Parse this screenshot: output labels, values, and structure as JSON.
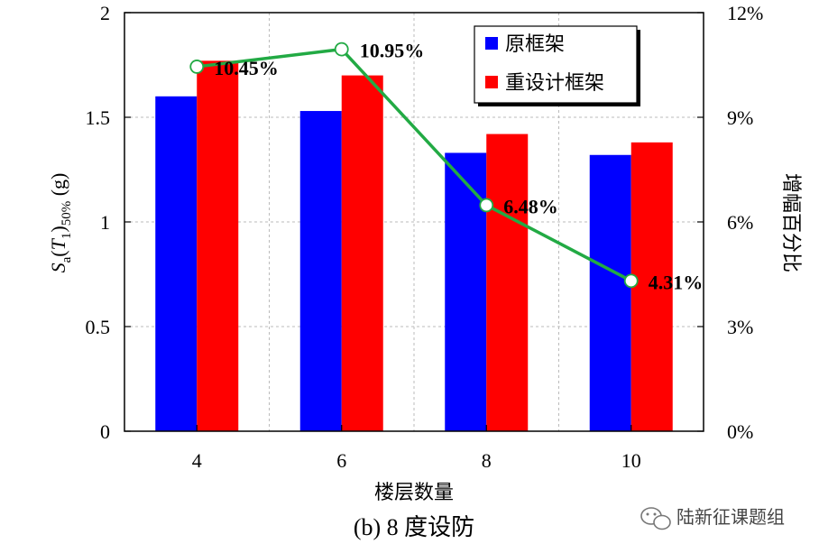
{
  "chart_data": {
    "type": "bar",
    "categories": [
      "4",
      "6",
      "8",
      "10"
    ],
    "series": [
      {
        "name": "原框架",
        "color": "#0000ff",
        "values": [
          1.6,
          1.53,
          1.33,
          1.32
        ],
        "axis": "left"
      },
      {
        "name": "重设计框架",
        "color": "#ff0000",
        "values": [
          1.77,
          1.7,
          1.42,
          1.38
        ],
        "axis": "left"
      }
    ],
    "line_series": {
      "axis": "right",
      "color": "#22aa44",
      "values": [
        10.45,
        10.95,
        6.48,
        4.31
      ],
      "labels": [
        "10.45%",
        "10.95%",
        "6.48%",
        "4.31%"
      ]
    },
    "xlabel": "楼层数量",
    "ylabel_left": {
      "S": "S",
      "a": "a",
      "paren_open": "(",
      "T": "T",
      "one": "1",
      "paren_close": ")",
      "sub": "50%",
      "unit": " (g)"
    },
    "ylabel_right": "增幅百分比",
    "ylim_left": [
      0,
      2
    ],
    "ylim_right": [
      0,
      12
    ],
    "yticks_left": [
      "0",
      "0.5",
      "1",
      "1.5",
      "2"
    ],
    "yticks_right": [
      "0%",
      "3%",
      "6%",
      "9%",
      "12%"
    ],
    "grid": true,
    "legend_position": "top-right",
    "caption": "(b) 8 度设防"
  },
  "watermark": {
    "text": "陆新征课题组",
    "icon": "wechat-icon"
  }
}
